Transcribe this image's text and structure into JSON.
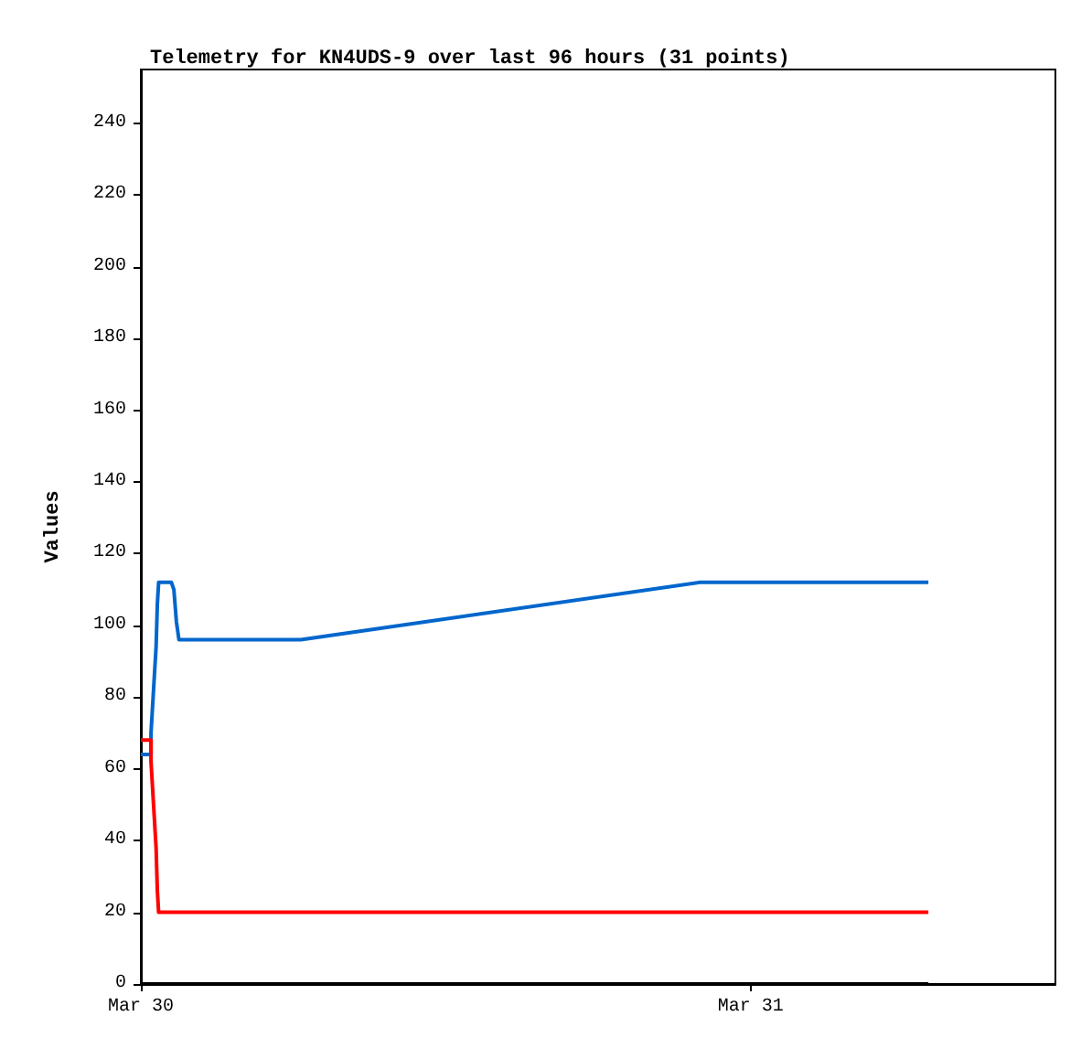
{
  "chart_data": {
    "type": "line",
    "title": "Telemetry for KN4UDS-9 over last 96 hours (31 points)",
    "ylabel": "Values",
    "xlim": [
      "--03-30T00:00",
      "--03-31T12:00"
    ],
    "xticks": [
      {
        "value": "--03-30",
        "label": "Mar 30"
      },
      {
        "value": "--03-31",
        "label": "Mar 31"
      }
    ],
    "ylim": [
      0,
      255
    ],
    "yticks": [
      0,
      20,
      40,
      60,
      80,
      100,
      120,
      140,
      160,
      180,
      200,
      220,
      240
    ],
    "grid": false,
    "marker": "none",
    "line_style": "solid",
    "series": [
      {
        "color": "#0066cc",
        "x": [
          "--03-30T00:00",
          "--03-30T00:24",
          "--03-30T00:24",
          "--03-30T00:30",
          "--03-30T00:36",
          "--03-30T00:39",
          "--03-30T00:42",
          "--03-30T01:12",
          "--03-30T01:18",
          "--03-30T01:24",
          "--03-30T01:30",
          "--03-30T06:18",
          "--03-30T22:00",
          "--03-31T07:00"
        ],
        "values": [
          64,
          64,
          70,
          82,
          94,
          106,
          112,
          112,
          110,
          101,
          96,
          96,
          112,
          112
        ]
      },
      {
        "color": "#ff0000",
        "x": [
          "--03-30T00:00",
          "--03-30T00:24",
          "--03-30T00:24",
          "--03-30T00:30",
          "--03-30T00:36",
          "--03-30T00:39",
          "--03-30T00:42",
          "--03-31T07:00"
        ],
        "values": [
          68,
          68,
          62,
          50,
          38,
          26,
          20,
          20
        ]
      },
      {
        "color": "#000000",
        "x": [
          "--03-30T00:00",
          "--03-31T07:00"
        ],
        "values": [
          0,
          0
        ]
      }
    ]
  }
}
